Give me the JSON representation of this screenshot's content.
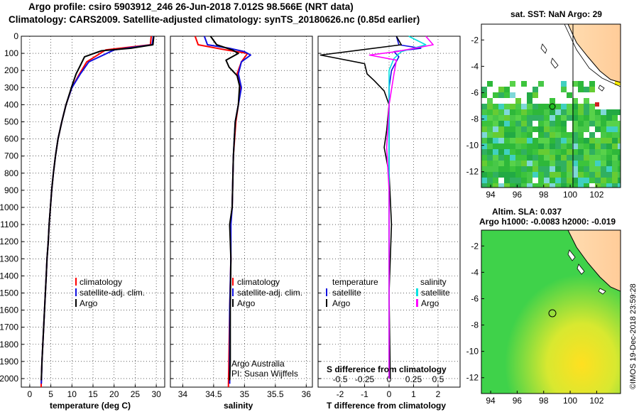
{
  "header": {
    "line1": "Argo profile: csiro 5903912_246 26-Jun-2018 7.012S 98.566E (NRT data)",
    "line2": "Climatology: CARS2009. Satellite-adjusted climatology: synTS_20180626.nc (0.85d earlier)"
  },
  "side_note": "©IMOS 19-Dec-2018 23:59:28",
  "colors": {
    "climatology": "#ff0000",
    "satellite": "#1010e0",
    "argo": "#000000",
    "argo_s": "#ff00ff",
    "sat_s": "#00e0e0",
    "ocean_green": "#20c020",
    "land": "#ffcc99"
  },
  "chart_data": [
    {
      "type": "line",
      "id": "temperature",
      "xlabel": "temperature (deg C)",
      "xlim": [
        -2,
        32
      ],
      "xticks": [
        "0",
        "5",
        "10",
        "15",
        "20",
        "25",
        "30"
      ],
      "ylim": [
        0,
        2050
      ],
      "yticks": [
        "0",
        "100",
        "200",
        "300",
        "400",
        "500",
        "600",
        "700",
        "800",
        "900",
        "1000",
        "1100",
        "1200",
        "1300",
        "1400",
        "1500",
        "1600",
        "1700",
        "1800",
        "1900",
        "2000"
      ],
      "legend": [
        "climatology",
        "satellite-adj. clim.",
        "Argo"
      ],
      "series": [
        {
          "name": "climatology",
          "color": "#ff0000",
          "points": [
            [
              28.8,
              0
            ],
            [
              28.6,
              50
            ],
            [
              18,
              80
            ],
            [
              13.5,
              150
            ],
            [
              11.8,
              220
            ],
            [
              10,
              300
            ],
            [
              8.6,
              400
            ],
            [
              7.6,
              500
            ],
            [
              6.7,
              600
            ],
            [
              6.1,
              700
            ],
            [
              5.6,
              800
            ],
            [
              5.2,
              900
            ],
            [
              4.9,
              1000
            ],
            [
              4.6,
              1100
            ],
            [
              4.4,
              1200
            ],
            [
              4.1,
              1300
            ],
            [
              3.9,
              1400
            ],
            [
              3.7,
              1500
            ],
            [
              3.5,
              1600
            ],
            [
              3.3,
              1700
            ],
            [
              3.1,
              1800
            ],
            [
              2.9,
              1900
            ],
            [
              2.7,
              2050
            ]
          ]
        },
        {
          "name": "satellite-adj. clim.",
          "color": "#1010e0",
          "points": [
            [
              29.3,
              0
            ],
            [
              29,
              50
            ],
            [
              20,
              80
            ],
            [
              14,
              150
            ],
            [
              12,
              220
            ],
            [
              10,
              300
            ],
            [
              8.6,
              400
            ],
            [
              7.6,
              500
            ],
            [
              6.7,
              600
            ],
            [
              6.1,
              700
            ],
            [
              5.6,
              800
            ],
            [
              5.2,
              900
            ],
            [
              4.9,
              1000
            ],
            [
              4.6,
              1100
            ],
            [
              4.4,
              1200
            ],
            [
              4.1,
              1300
            ],
            [
              3.9,
              1400
            ],
            [
              3.7,
              1500
            ],
            [
              3.5,
              1600
            ],
            [
              3.3,
              1700
            ],
            [
              3.1,
              1800
            ],
            [
              2.9,
              1900
            ],
            [
              2.75,
              2030
            ]
          ]
        },
        {
          "name": "Argo",
          "color": "#000000",
          "points": [
            [
              29.4,
              0
            ],
            [
              29.2,
              50
            ],
            [
              24,
              70
            ],
            [
              17,
              85
            ],
            [
              13,
              120
            ],
            [
              12,
              170
            ],
            [
              11,
              220
            ],
            [
              10,
              290
            ],
            [
              8.6,
              400
            ],
            [
              7.6,
              500
            ],
            [
              6.7,
              600
            ],
            [
              6.1,
              700
            ],
            [
              5.6,
              800
            ],
            [
              5.2,
              900
            ],
            [
              4.9,
              1000
            ],
            [
              4.6,
              1100
            ],
            [
              4.4,
              1200
            ],
            [
              4.1,
              1300
            ],
            [
              3.9,
              1400
            ],
            [
              3.7,
              1500
            ],
            [
              3.5,
              1600
            ],
            [
              3.3,
              1700
            ],
            [
              3.1,
              1800
            ],
            [
              2.9,
              1900
            ],
            [
              2.75,
              2010
            ]
          ]
        }
      ]
    },
    {
      "type": "line",
      "id": "salinity",
      "xlabel": "salinity",
      "xlim": [
        33.8,
        36.1
      ],
      "xticks": [
        "34",
        "34.5",
        "35",
        "35.5",
        "36"
      ],
      "ylim": [
        0,
        2050
      ],
      "legend": [
        "climatology",
        "satellite-adj. clim.",
        "Argo"
      ],
      "annotation": [
        "Argo Australia",
        "PI: Susan Wijffels"
      ],
      "series": [
        {
          "name": "climatology",
          "color": "#ff0000",
          "points": [
            [
              34.2,
              0
            ],
            [
              34.25,
              50
            ],
            [
              34.7,
              80
            ],
            [
              35.05,
              100
            ],
            [
              34.95,
              150
            ],
            [
              34.88,
              220
            ],
            [
              34.93,
              300
            ],
            [
              34.9,
              400
            ],
            [
              34.86,
              500
            ],
            [
              34.82,
              700
            ],
            [
              34.8,
              1000
            ],
            [
              34.77,
              1100
            ],
            [
              34.78,
              1300
            ],
            [
              34.76,
              1600
            ],
            [
              34.74,
              2050
            ]
          ]
        },
        {
          "name": "satellite-adj. clim.",
          "color": "#1010e0",
          "points": [
            [
              34.35,
              0
            ],
            [
              34.4,
              50
            ],
            [
              34.75,
              70
            ],
            [
              35,
              90
            ],
            [
              35.1,
              110
            ],
            [
              34.95,
              150
            ],
            [
              34.9,
              220
            ],
            [
              34.95,
              300
            ],
            [
              34.9,
              400
            ],
            [
              34.85,
              500
            ],
            [
              34.82,
              700
            ],
            [
              34.8,
              1000
            ],
            [
              34.78,
              1100
            ],
            [
              34.78,
              1300
            ],
            [
              34.76,
              1600
            ],
            [
              34.76,
              1900
            ],
            [
              34.76,
              2030
            ]
          ]
        },
        {
          "name": "Argo",
          "color": "#000000",
          "points": [
            [
              34.45,
              0
            ],
            [
              34.55,
              50
            ],
            [
              34.8,
              80
            ],
            [
              34.9,
              100
            ],
            [
              34.7,
              140
            ],
            [
              34.75,
              180
            ],
            [
              34.88,
              230
            ],
            [
              34.92,
              290
            ],
            [
              34.9,
              400
            ],
            [
              34.85,
              500
            ],
            [
              34.82,
              700
            ],
            [
              34.8,
              1000
            ],
            [
              34.76,
              1100
            ],
            [
              34.78,
              1300
            ],
            [
              34.77,
              1600
            ],
            [
              34.77,
              1900
            ],
            [
              34.76,
              2010
            ]
          ]
        }
      ]
    },
    {
      "type": "line",
      "id": "difference",
      "xlabel": "T difference from climatology",
      "xlabel2": "S difference from climatology",
      "xlim": [
        -2.9,
        2.9
      ],
      "xticks": [
        "-2",
        "-1",
        "0",
        "1",
        "2"
      ],
      "xticks2": [
        "-0.5",
        "-0.25",
        "0",
        "0.25",
        "0.5"
      ],
      "ylim": [
        0,
        2050
      ],
      "legend_left_title": "temperature",
      "legend_right_title": "salinity",
      "legend_left": [
        "satellite",
        "Argo"
      ],
      "legend_right": [
        "satellite",
        "Argo"
      ],
      "series": [
        {
          "name": "T satellite",
          "color": "#1010e0",
          "points": [
            [
              0.3,
              0
            ],
            [
              0.4,
              50
            ],
            [
              1.3,
              70
            ],
            [
              0.2,
              90
            ],
            [
              0.4,
              120
            ],
            [
              0.1,
              200
            ],
            [
              0,
              300
            ],
            [
              0,
              600
            ],
            [
              0,
              1000
            ],
            [
              0,
              1500
            ],
            [
              0,
              2000
            ]
          ]
        },
        {
          "name": "T Argo",
          "color": "#000000",
          "points": [
            [
              0.3,
              0
            ],
            [
              0.5,
              50
            ],
            [
              -2.8,
              110
            ],
            [
              -1,
              160
            ],
            [
              -0.9,
              220
            ],
            [
              -0.6,
              260
            ],
            [
              -0.2,
              320
            ],
            [
              0,
              400
            ],
            [
              -0.1,
              550
            ],
            [
              -0.2,
              650
            ],
            [
              0,
              800
            ],
            [
              0.1,
              1100
            ],
            [
              0,
              1500
            ],
            [
              0.05,
              2000
            ]
          ]
        },
        {
          "name": "S satellite",
          "color": "#00e0e0",
          "points": [
            [
              0.8,
              0
            ],
            [
              1.5,
              50
            ],
            [
              0.5,
              90
            ],
            [
              0.2,
              130
            ],
            [
              0,
              200
            ],
            [
              0,
              400
            ],
            [
              0,
              800
            ],
            [
              0,
              1400
            ],
            [
              0,
              2000
            ]
          ]
        },
        {
          "name": "S Argo",
          "color": "#ff00ff",
          "points": [
            [
              1.5,
              0
            ],
            [
              1.8,
              50
            ],
            [
              0.3,
              90
            ],
            [
              -0.8,
              110
            ],
            [
              0.3,
              140
            ],
            [
              0.2,
              220
            ],
            [
              0,
              400
            ],
            [
              -0.1,
              650
            ],
            [
              0,
              900
            ],
            [
              0,
              1500
            ],
            [
              0,
              2000
            ]
          ]
        }
      ]
    },
    {
      "type": "heatmap",
      "id": "sst_map",
      "title": "sat. SST: NaN Argo: 29",
      "xticks": [
        "94",
        "96",
        "98",
        "100",
        "102"
      ],
      "yticks": [
        "-2",
        "-4",
        "-6",
        "-8",
        "-10",
        "-12"
      ],
      "xlim": [
        93.3,
        103.8
      ],
      "ylim": [
        -13.2,
        -0.8
      ],
      "argo_position": [
        98.566,
        -7.012
      ]
    },
    {
      "type": "heatmap",
      "id": "sla_map",
      "title_line1": "Altim. SLA: 0.037",
      "title_line2": "Argo h1000: -0.0083 h2000: -0.019",
      "xticks": [
        "94",
        "96",
        "98",
        "100",
        "102"
      ],
      "yticks": [
        "-2",
        "-4",
        "-6",
        "-8",
        "-10",
        "-12"
      ],
      "xlim": [
        93.3,
        103.8
      ],
      "ylim": [
        -13.2,
        -0.8
      ],
      "argo_position": [
        98.566,
        -7.012
      ]
    }
  ]
}
